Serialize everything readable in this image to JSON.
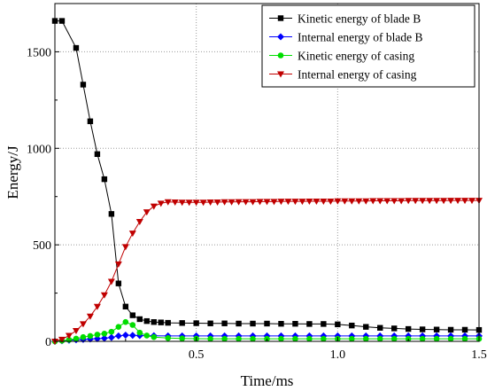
{
  "chart_data": {
    "type": "line",
    "xlabel": "Time/ms",
    "ylabel": "Energy/J",
    "xlim": [
      0,
      1.5
    ],
    "ylim": [
      0,
      1750
    ],
    "x_ticks": [
      0.5,
      1.0,
      1.5
    ],
    "x_tick_labels": [
      "0.5",
      "1.0",
      "1.5"
    ],
    "y_ticks": [
      0,
      500,
      1000,
      1500
    ],
    "y_tick_labels": [
      "0",
      "500",
      "1000",
      "1500"
    ],
    "legend_position": "top-right",
    "grid": true,
    "series": [
      {
        "name": "Kinetic energy of blade B",
        "color": "#000000",
        "marker": "square",
        "x": [
          0.0,
          0.025,
          0.075,
          0.1,
          0.125,
          0.15,
          0.175,
          0.2,
          0.225,
          0.25,
          0.275,
          0.3,
          0.325,
          0.35,
          0.375,
          0.4,
          0.45,
          0.5,
          0.55,
          0.6,
          0.65,
          0.7,
          0.75,
          0.8,
          0.85,
          0.9,
          0.95,
          1.0,
          1.05,
          1.1,
          1.15,
          1.2,
          1.25,
          1.3,
          1.35,
          1.4,
          1.45,
          1.5
        ],
        "y": [
          1660,
          1660,
          1520,
          1330,
          1140,
          970,
          840,
          660,
          300,
          180,
          135,
          115,
          105,
          100,
          98,
          96,
          95,
          94,
          93,
          93,
          92,
          92,
          92,
          91,
          91,
          90,
          90,
          88,
          82,
          75,
          70,
          67,
          64,
          62,
          61,
          60,
          60,
          59
        ]
      },
      {
        "name": "Internal energy of blade B",
        "color": "#0000ff",
        "marker": "diamond",
        "x": [
          0.0,
          0.025,
          0.05,
          0.075,
          0.1,
          0.125,
          0.15,
          0.175,
          0.2,
          0.225,
          0.25,
          0.275,
          0.3,
          0.35,
          0.4,
          0.45,
          0.5,
          0.55,
          0.6,
          0.65,
          0.7,
          0.75,
          0.8,
          0.85,
          0.9,
          0.95,
          1.0,
          1.05,
          1.1,
          1.15,
          1.2,
          1.25,
          1.3,
          1.35,
          1.4,
          1.45,
          1.5
        ],
        "y": [
          0,
          3,
          6,
          8,
          10,
          12,
          14,
          16,
          20,
          28,
          32,
          31,
          30,
          29,
          28,
          28,
          28,
          28,
          28,
          28,
          28,
          28,
          28,
          28,
          28,
          28,
          28,
          28,
          28,
          28,
          28,
          28,
          28,
          28,
          28,
          28,
          28
        ]
      },
      {
        "name": "Kinetic energy of casing",
        "color": "#00dd00",
        "marker": "circle",
        "x": [
          0.0,
          0.025,
          0.05,
          0.075,
          0.1,
          0.125,
          0.15,
          0.175,
          0.2,
          0.225,
          0.25,
          0.275,
          0.3,
          0.325,
          0.35,
          0.4,
          0.45,
          0.5,
          0.55,
          0.6,
          0.65,
          0.7,
          0.75,
          0.8,
          0.85,
          0.9,
          0.95,
          1.0,
          1.05,
          1.1,
          1.15,
          1.2,
          1.25,
          1.3,
          1.35,
          1.4,
          1.45,
          1.5
        ],
        "y": [
          0,
          3,
          8,
          14,
          22,
          28,
          35,
          40,
          50,
          75,
          100,
          85,
          45,
          30,
          22,
          17,
          15,
          14,
          13,
          13,
          13,
          13,
          13,
          13,
          13,
          13,
          13,
          13,
          13,
          13,
          13,
          13,
          13,
          13,
          13,
          13,
          13,
          13
        ]
      },
      {
        "name": "Internal energy of casing",
        "color": "#c00000",
        "marker": "triangle-down",
        "x": [
          0.0,
          0.025,
          0.05,
          0.075,
          0.1,
          0.125,
          0.15,
          0.175,
          0.2,
          0.225,
          0.25,
          0.275,
          0.3,
          0.325,
          0.35,
          0.375,
          0.4,
          0.425,
          0.45,
          0.475,
          0.5,
          0.525,
          0.55,
          0.575,
          0.6,
          0.625,
          0.65,
          0.675,
          0.7,
          0.725,
          0.75,
          0.775,
          0.8,
          0.825,
          0.85,
          0.875,
          0.9,
          0.925,
          0.95,
          0.975,
          1.0,
          1.025,
          1.05,
          1.075,
          1.1,
          1.125,
          1.15,
          1.175,
          1.2,
          1.225,
          1.25,
          1.275,
          1.3,
          1.325,
          1.35,
          1.375,
          1.4,
          1.425,
          1.45,
          1.475,
          1.5
        ],
        "y": [
          0,
          10,
          30,
          55,
          90,
          130,
          180,
          240,
          310,
          400,
          490,
          560,
          620,
          670,
          700,
          715,
          722,
          721,
          720,
          720,
          720,
          720,
          721,
          721,
          722,
          722,
          723,
          723,
          723,
          724,
          724,
          724,
          725,
          725,
          725,
          725,
          726,
          726,
          726,
          726,
          727,
          727,
          727,
          727,
          727,
          728,
          728,
          728,
          728,
          728,
          729,
          729,
          729,
          729,
          729,
          729,
          730,
          730,
          730,
          730,
          730
        ]
      }
    ]
  }
}
